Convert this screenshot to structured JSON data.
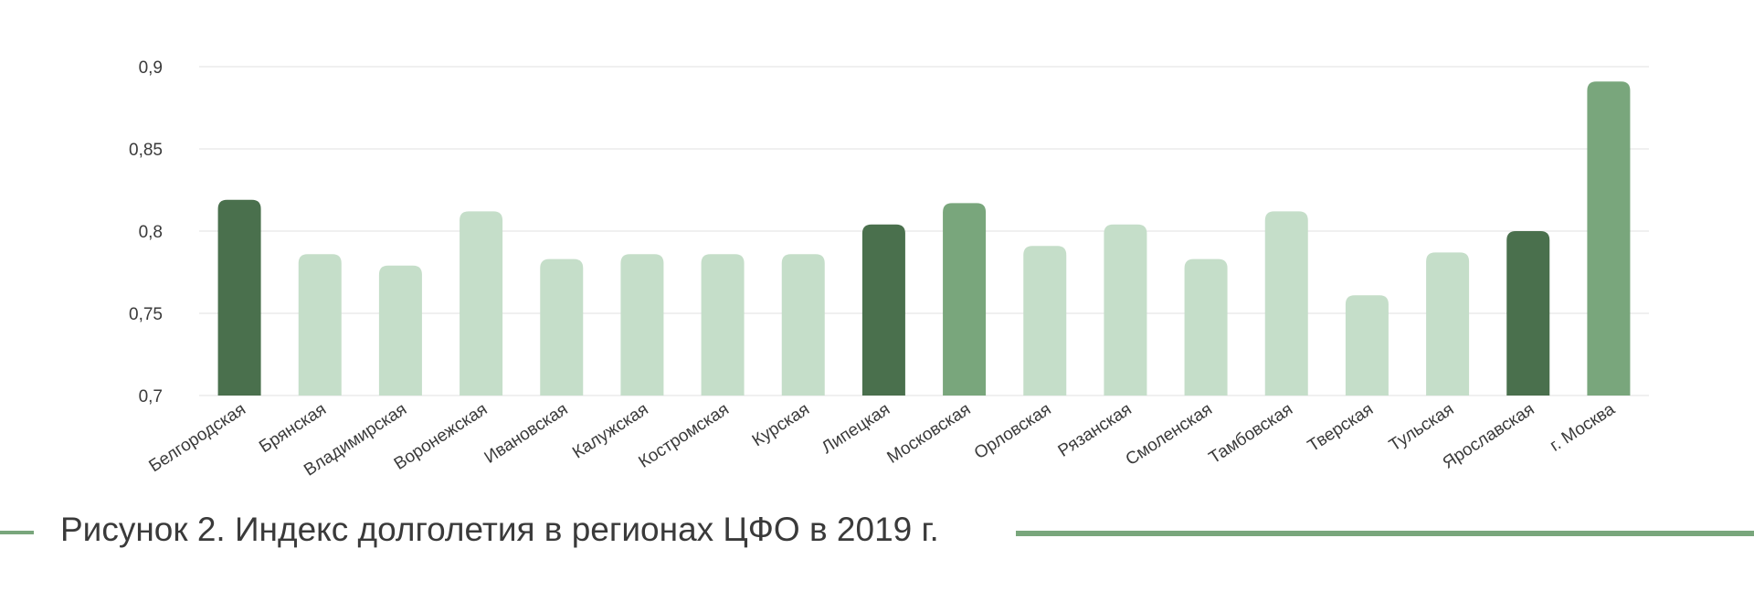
{
  "chart_data": {
    "type": "bar",
    "categories": [
      "Белгородская",
      "Брянская",
      "Владимирская",
      "Воронежская",
      "Ивановская",
      "Калужская",
      "Костромская",
      "Курская",
      "Липецкая",
      "Московская",
      "Орловская",
      "Рязанская",
      "Смоленская",
      "Тамбовская",
      "Тверская",
      "Тульская",
      "Ярославская",
      "г. Москва"
    ],
    "values": [
      0.819,
      0.786,
      0.779,
      0.812,
      0.783,
      0.786,
      0.786,
      0.786,
      0.804,
      0.817,
      0.791,
      0.804,
      0.783,
      0.812,
      0.761,
      0.787,
      0.8,
      0.891
    ],
    "bar_colors": [
      "#4a704d",
      "#c5dec9",
      "#c5dec9",
      "#c5dec9",
      "#c5dec9",
      "#c5dec9",
      "#c5dec9",
      "#c5dec9",
      "#4a704d",
      "#79a67c",
      "#c5dec9",
      "#c5dec9",
      "#c5dec9",
      "#c5dec9",
      "#c5dec9",
      "#c5dec9",
      "#4a704d",
      "#79a67c"
    ],
    "yticks": [
      "0,7",
      "0,75",
      "0,8",
      "0,85",
      "0,9"
    ],
    "ytick_values": [
      0.7,
      0.75,
      0.8,
      0.85,
      0.9
    ],
    "ylim": [
      0.7,
      0.9
    ],
    "grid": true,
    "title": "",
    "xlabel": "",
    "ylabel": ""
  },
  "caption": {
    "text": "Рисунок 2. Индекс долголетия в регионах ЦФО в 2019 г."
  },
  "colors": {
    "accent": "#79a67c",
    "dark": "#4a704d",
    "light": "#c5dec9",
    "grid": "#e6e6e6",
    "text": "#3a3a3a"
  }
}
